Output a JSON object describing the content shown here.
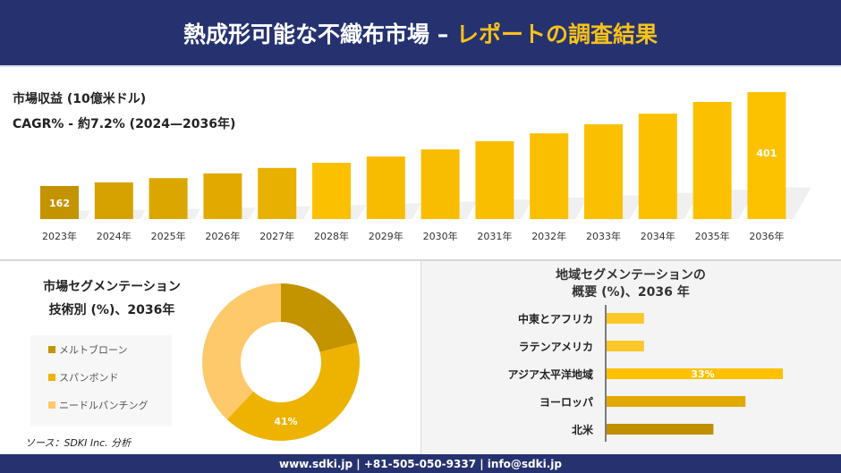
{
  "header": {
    "title_white": "熱成形可能な不織布市場 –",
    "title_yellow": "レポートの調査結果"
  },
  "revenue": {
    "label": "市場収益 (10億米ドル)",
    "cagr": "CAGR% - 約7.2% (2024—2036年)"
  },
  "chart_data": [
    {
      "type": "bar",
      "categories": [
        "2023年",
        "2024年",
        "2025年",
        "2026年",
        "2027年",
        "2028年",
        "2029年",
        "2030年",
        "2031年",
        "2032年",
        "2033年",
        "2034年",
        "2035年",
        "2036年"
      ],
      "values": [
        162,
        171,
        182,
        194,
        208,
        221,
        237,
        255,
        276,
        296,
        319,
        346,
        376,
        401
      ],
      "data_labels": {
        "0": "162",
        "13": "401"
      },
      "ylabel": "市場収益 (10億米ドル)"
    },
    {
      "type": "pie",
      "title": "市場セグメンテーション 技術別 (%)、2036年",
      "labels": [
        "メルトブローン",
        "スパンボンド",
        "ニードルパンチング"
      ],
      "values": [
        21,
        41,
        38
      ],
      "colors": [
        "#c49300",
        "#edb300",
        "#fdc96a"
      ],
      "data_labels": {
        "1": "41%"
      },
      "legend": "left"
    },
    {
      "type": "bar",
      "orientation": "horizontal",
      "title": "地域セグメンテーションの 概要 (%)、2036 年",
      "categories": [
        "中東とアフリカ",
        "ラテンアメリカ",
        "アジア太平洋地域",
        "ヨーロッパ",
        "北米"
      ],
      "values": [
        7,
        7,
        33,
        26,
        20
      ],
      "colors": [
        "#fdc72a",
        "#fdc72a",
        "#fdc100",
        "#e2a900",
        "#c08f00"
      ],
      "data_labels": {
        "2": "33%"
      }
    }
  ],
  "segmentation": {
    "title1": "市場セグメンテーション",
    "title2": "技術別 (%)、2036年",
    "source": "ソース：SDKI Inc. 分析"
  },
  "region": {
    "title1": "地域セグメンテーションの",
    "title2": "概要 (%)、2036 年"
  },
  "footer": {
    "text": "www.sdki.jp | +81-505-050-9337 | info@sdki.jp"
  }
}
